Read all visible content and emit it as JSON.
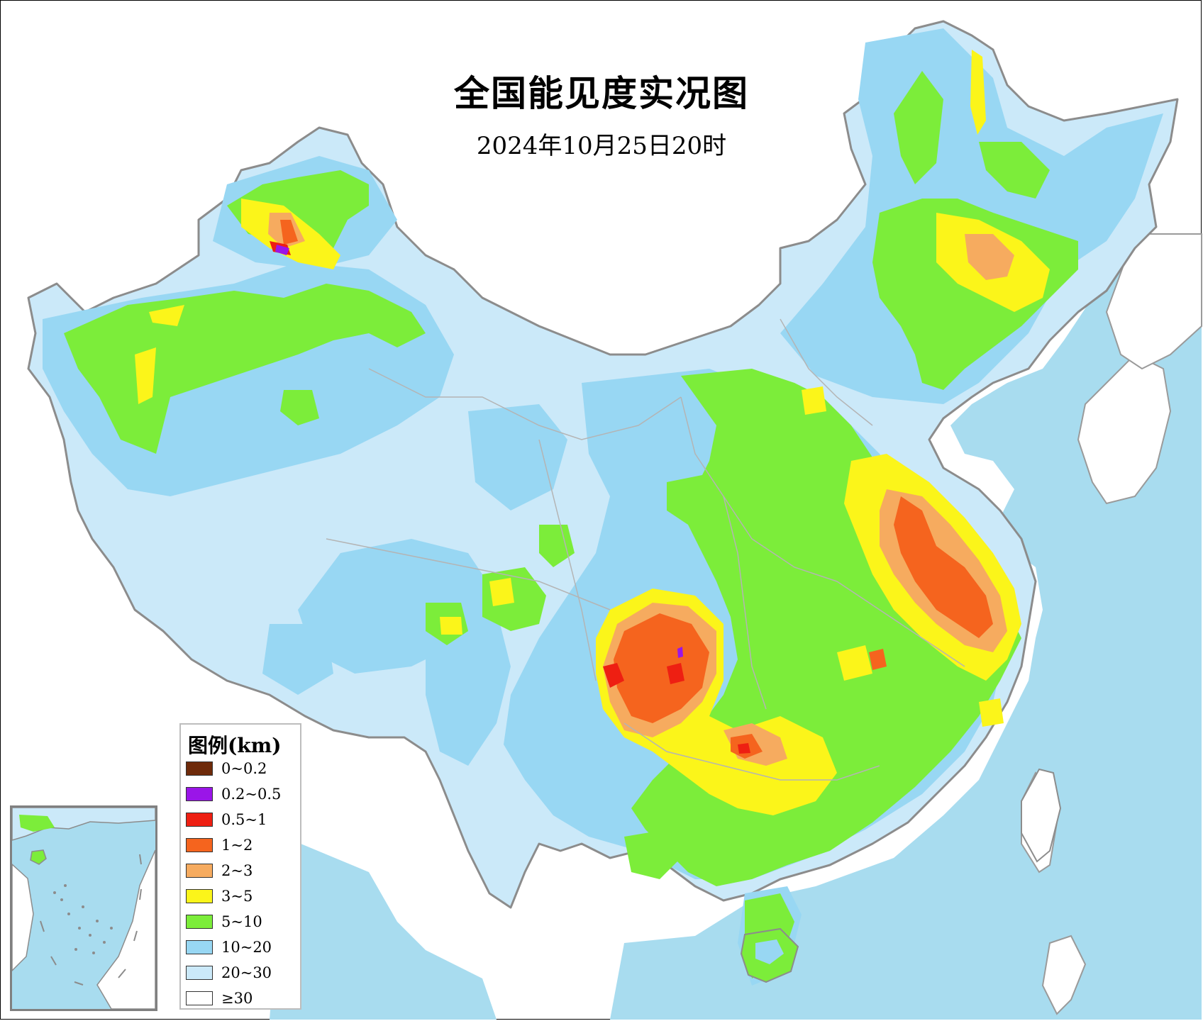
{
  "title": "全国能见度实况图",
  "subtitle": "2024年10月25日20时",
  "colors": {
    "sea": "#a8dcef",
    "land_outside": "#ffffff",
    "border": "#8c8c8c",
    "province_border": "#b4b4b4"
  },
  "legend": {
    "title": "图例(km)",
    "items": [
      {
        "label": "0~0.2",
        "color": "#6e2a0a"
      },
      {
        "label": "0.2~0.5",
        "color": "#9a15e8"
      },
      {
        "label": "0.5~1",
        "color": "#ee1f12"
      },
      {
        "label": "1~2",
        "color": "#f5641e"
      },
      {
        "label": "2~3",
        "color": "#f6ab5f"
      },
      {
        "label": "3~5",
        "color": "#fbf51a"
      },
      {
        "label": "5~10",
        "color": "#7ced3a"
      },
      {
        "label": "10~20",
        "color": "#98d7f3"
      },
      {
        "label": "20~30",
        "color": "#cbe9f9"
      },
      {
        "label": "≥30",
        "color": "#ffffff"
      }
    ]
  }
}
